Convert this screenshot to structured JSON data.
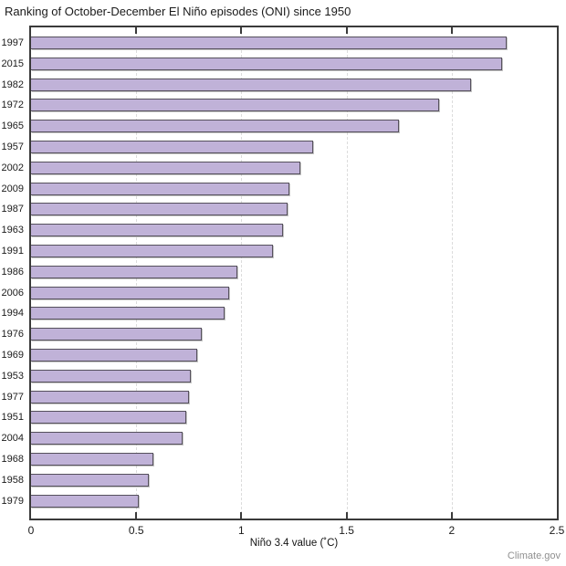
{
  "page": {
    "watermark": "Climate.gov"
  },
  "chart_data": {
    "type": "bar",
    "orientation": "horizontal",
    "title": "Ranking of October-December El Niño episodes (ONI) since 1950",
    "xlabel": "Niño 3.4 value (˚C)",
    "ylabel": "",
    "xlim": [
      0,
      2.5
    ],
    "xticks": [
      0,
      0.5,
      1,
      1.5,
      2,
      2.5
    ],
    "xtick_labels": [
      "0",
      "0.5",
      "1",
      "1.5",
      "2",
      "2.5"
    ],
    "grid": "vertical dashed gridlines at 0.5 intervals, behind bars",
    "legend": "none",
    "bar_color": "#c0b2d8",
    "bar_border_color": "#55505c",
    "axis_color": "#3a3a3a",
    "gridline_color": "#dcdcdc",
    "categories": [
      "1997",
      "2015",
      "1982",
      "1972",
      "1965",
      "1957",
      "2002",
      "2009",
      "1987",
      "1963",
      "1991",
      "1986",
      "2006",
      "1994",
      "1976",
      "1969",
      "1953",
      "1977",
      "1951",
      "2004",
      "1968",
      "1958",
      "1979"
    ],
    "values": [
      2.26,
      2.24,
      2.09,
      1.94,
      1.75,
      1.34,
      1.28,
      1.23,
      1.22,
      1.2,
      1.15,
      0.98,
      0.94,
      0.92,
      0.81,
      0.79,
      0.76,
      0.75,
      0.74,
      0.72,
      0.58,
      0.56,
      0.51
    ]
  }
}
